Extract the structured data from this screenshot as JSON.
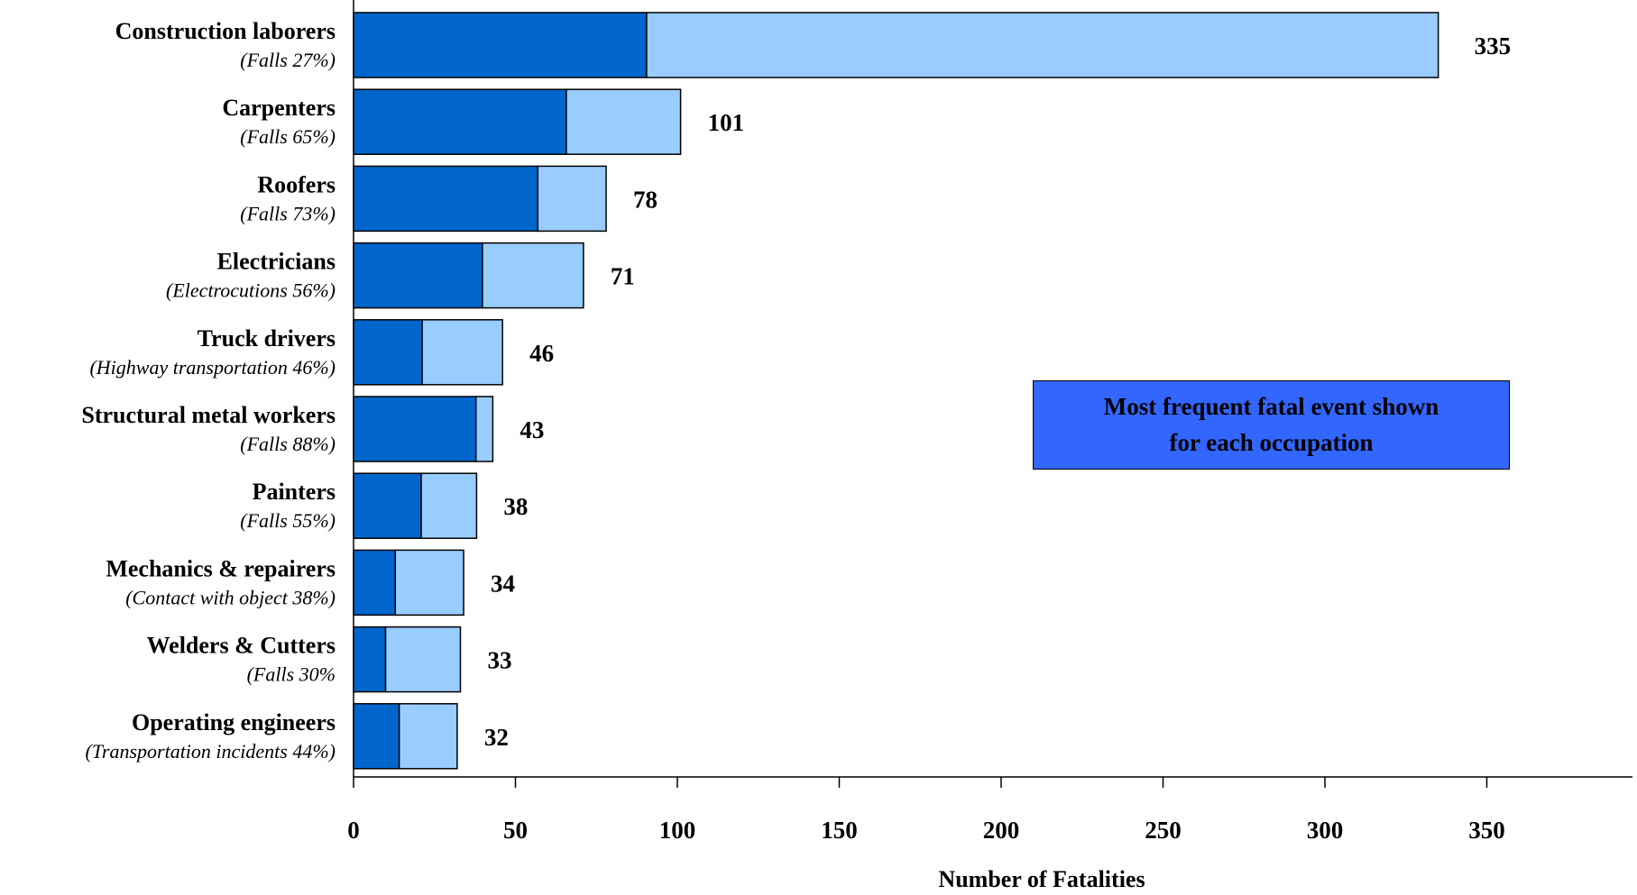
{
  "chart_data": {
    "type": "bar",
    "orientation": "horizontal",
    "stacked": true,
    "categories": [
      "Construction laborers",
      "Carpenters",
      "Roofers",
      "Electricians",
      "Truck drivers",
      "Structural metal workers",
      "Painters",
      "Mechanics & repairers",
      "Welders & Cutters",
      "Operating engineers"
    ],
    "category_notes": [
      "(Falls 27%)",
      "(Falls 65%)",
      "(Falls 73%)",
      "(Electrocutions 56%)",
      "(Highway transportation 46%)",
      "(Falls 88%)",
      "(Falls 55%)",
      "(Contact with object 38%)",
      "(Falls 30%",
      "(Transportation incidents 44%)"
    ],
    "totals": [
      335,
      101,
      78,
      71,
      46,
      43,
      38,
      34,
      33,
      32
    ],
    "total_labels": [
      "335",
      "101",
      "78",
      "71",
      "46",
      "43",
      "38",
      "34",
      "33",
      "32"
    ],
    "series": [
      {
        "values": [
          90.5,
          65.7,
          56.9,
          39.8,
          21.2,
          37.8,
          20.9,
          12.9,
          9.9,
          14.1
        ],
        "color": "#0066cc"
      },
      {
        "values": [
          244.5,
          35.3,
          21.1,
          31.2,
          24.8,
          5.2,
          17.1,
          21.1,
          23.1,
          17.9
        ],
        "color": "#99ccff"
      }
    ],
    "xlabel": "Number of Fatalities",
    "xlim": [
      0,
      395
    ],
    "xticks": [
      0,
      50,
      100,
      150,
      200,
      250,
      300,
      350
    ],
    "xtick_labels": [
      "0",
      "50",
      "100",
      "150",
      "200",
      "250",
      "300",
      "350"
    ],
    "grid": false,
    "annotation": "Most frequent fatal event shown\nfor each occupation",
    "annotation_color": "#3366ff"
  }
}
